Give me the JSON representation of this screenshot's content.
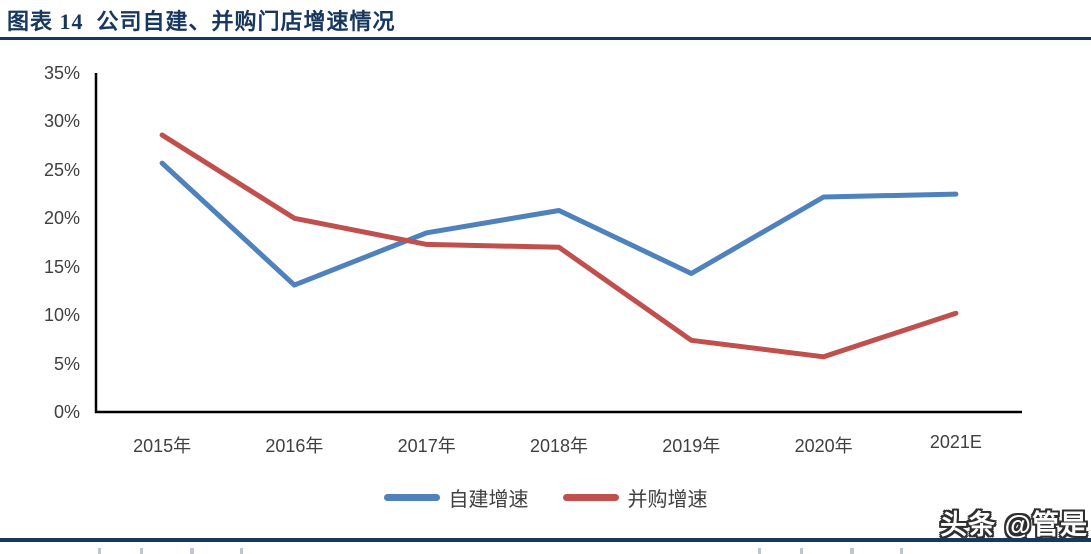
{
  "header": {
    "title": "图表 14  公司自建、并购门店增速情况"
  },
  "colors": {
    "accent_navy": "#17375E",
    "axis_black": "#000000",
    "tick_text_gray": "#404040",
    "series_self_built_blue": "#4F81BD",
    "series_ma_red": "#C0504D"
  },
  "chart_data": {
    "type": "line",
    "title": "公司自建、并购门店增速情况",
    "categories": [
      "2015年",
      "2016年",
      "2017年",
      "2018年",
      "2019年",
      "2020年",
      "2021E"
    ],
    "series": [
      {
        "name": "自建增速",
        "color": "#4F81BD",
        "values": [
          25.7,
          13.1,
          18.5,
          20.8,
          14.3,
          22.2,
          22.5
        ]
      },
      {
        "name": "并购增速",
        "color": "#C0504D",
        "values": [
          28.6,
          20.0,
          17.3,
          17.0,
          7.4,
          5.7,
          10.2
        ]
      }
    ],
    "xlabel": "",
    "ylabel": "",
    "ylim": [
      0,
      35
    ],
    "y_tick_step": 5,
    "y_ticks": [
      "0%",
      "5%",
      "10%",
      "15%",
      "20%",
      "25%",
      "30%",
      "35%"
    ],
    "grid": false,
    "legend_position": "bottom-center"
  },
  "watermark": {
    "text": "头条 @管是"
  }
}
